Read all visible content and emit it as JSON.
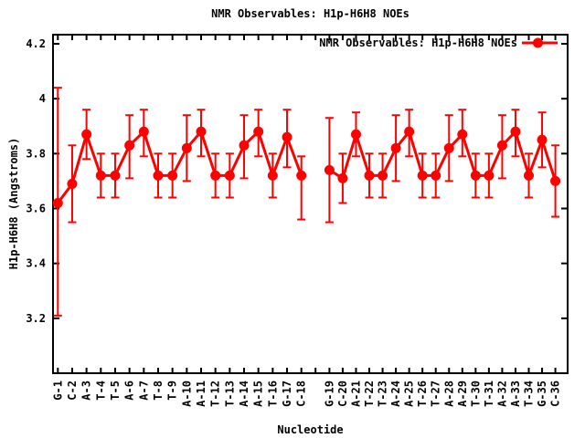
{
  "page": {
    "background": "#ffffff"
  },
  "chart_data": {
    "type": "line",
    "title": "NMR Observables: H1p-H6H8 NOEs",
    "xlabel": "Nucleotide",
    "ylabel": "H1p-H6H8 (Angstroms)",
    "legend": {
      "label": "NMR Observables: H1p-H6H8 NOEs",
      "position": "top-right-inside"
    },
    "series_color": "#ff0000",
    "grid": false,
    "marker": "filled-circle",
    "error_bars": true,
    "ylim": [
      3.0,
      4.23
    ],
    "yticks": [
      {
        "label": "4.2",
        "value": 4.2
      },
      {
        "label": "4",
        "value": 4.0
      },
      {
        "label": "3.8",
        "value": 3.8
      },
      {
        "label": "3.6",
        "value": 3.6
      },
      {
        "label": "3.4",
        "value": 3.4
      },
      {
        "label": "3.2",
        "value": 3.2
      }
    ],
    "categories": [
      "G-1",
      "C-2",
      "A-3",
      "T-4",
      "T-5",
      "A-6",
      "A-7",
      "T-8",
      "T-9",
      "A-10",
      "A-11",
      "T-12",
      "T-13",
      "A-14",
      "A-15",
      "T-16",
      "G-17",
      "C-18",
      "G-19",
      "C-20",
      "A-21",
      "T-22",
      "T-23",
      "A-24",
      "A-25",
      "T-26",
      "T-27",
      "A-28",
      "A-29",
      "T-30",
      "T-31",
      "A-32",
      "A-33",
      "T-34",
      "G-35",
      "C-36"
    ],
    "segments": [
      [
        0,
        17
      ],
      [
        18,
        35
      ]
    ],
    "series": [
      {
        "name": "NMR Observables: H1p-H6H8 NOEs",
        "values": [
          3.62,
          3.69,
          3.87,
          3.72,
          3.72,
          3.83,
          3.88,
          3.72,
          3.72,
          3.82,
          3.88,
          3.72,
          3.72,
          3.83,
          3.88,
          3.72,
          3.86,
          3.72,
          3.74,
          3.71,
          3.87,
          3.72,
          3.72,
          3.82,
          3.88,
          3.72,
          3.72,
          3.82,
          3.87,
          3.72,
          3.72,
          3.83,
          3.88,
          3.72,
          3.85,
          3.7
        ],
        "err_low": [
          3.21,
          3.55,
          3.78,
          3.64,
          3.64,
          3.71,
          3.79,
          3.64,
          3.64,
          3.7,
          3.79,
          3.64,
          3.64,
          3.71,
          3.79,
          3.64,
          3.75,
          3.56,
          3.55,
          3.62,
          3.79,
          3.64,
          3.64,
          3.7,
          3.79,
          3.64,
          3.64,
          3.7,
          3.79,
          3.64,
          3.64,
          3.71,
          3.79,
          3.64,
          3.75,
          3.57
        ],
        "err_high": [
          4.04,
          3.83,
          3.96,
          3.8,
          3.8,
          3.94,
          3.96,
          3.8,
          3.8,
          3.94,
          3.96,
          3.8,
          3.8,
          3.94,
          3.96,
          3.8,
          3.96,
          3.79,
          3.93,
          3.8,
          3.95,
          3.8,
          3.8,
          3.94,
          3.96,
          3.8,
          3.8,
          3.94,
          3.96,
          3.8,
          3.8,
          3.94,
          3.96,
          3.8,
          3.95,
          3.83
        ]
      }
    ]
  }
}
